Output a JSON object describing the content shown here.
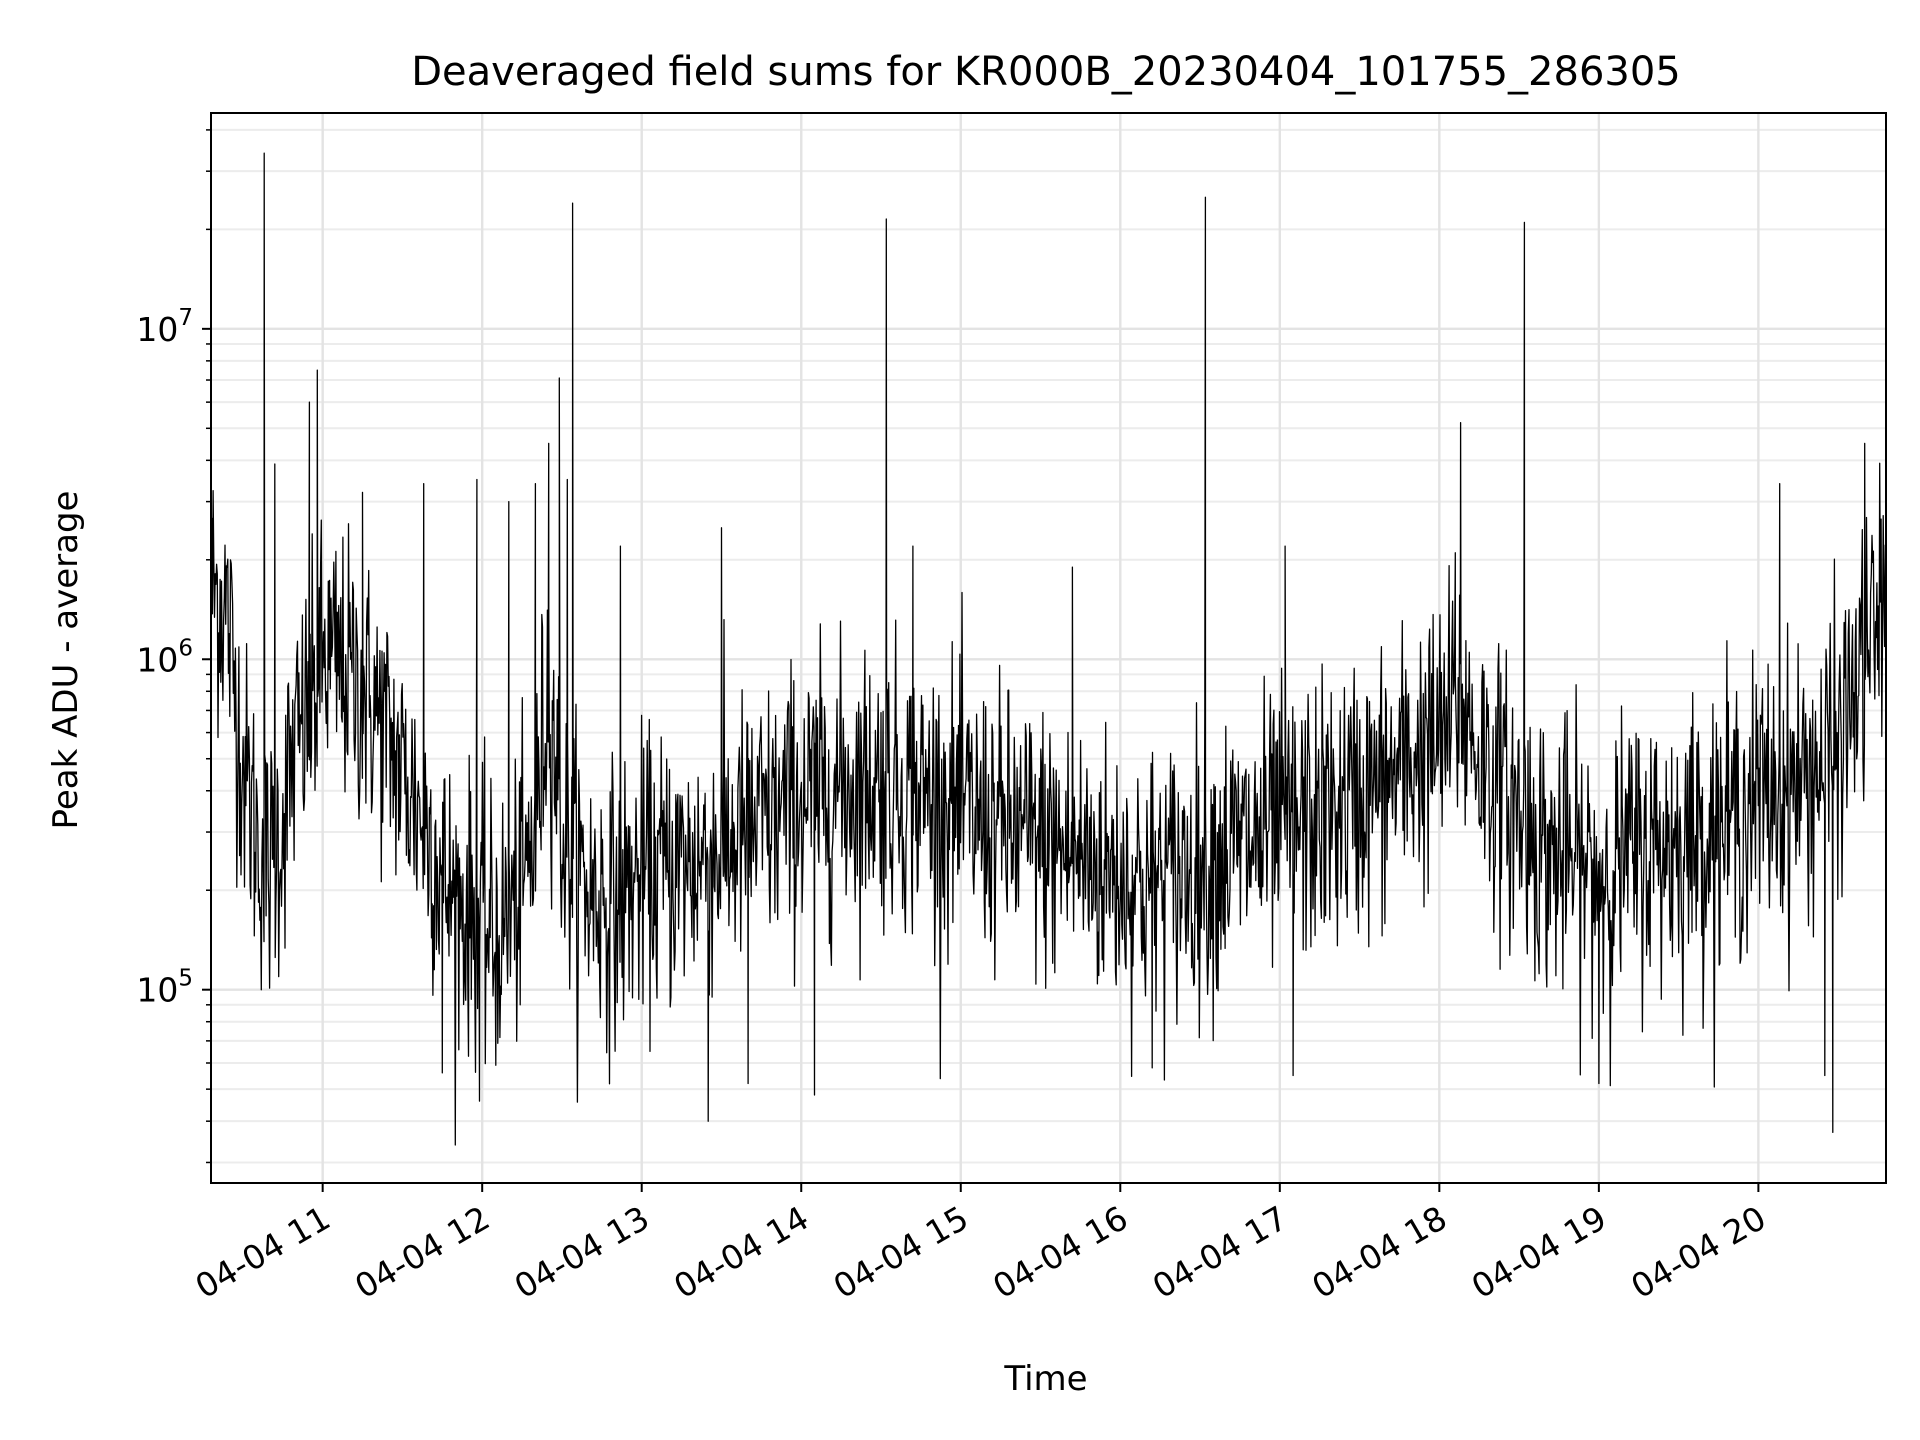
{
  "chart_data": {
    "type": "line",
    "title": "Deaveraged field sums for KR000B_20230404_101755_286305",
    "xlabel": "Time",
    "ylabel": "Peak ADU - average",
    "yscale": "log",
    "ylim": [
      26000,
      45000000
    ],
    "xlim": [
      "2023-04-04T10:18:00",
      "2023-04-04T20:48:00"
    ],
    "grid": true,
    "line_color": "#000000",
    "x_ticks": [
      {
        "value": "2023-04-04T11:00:00",
        "label": "04-04 11"
      },
      {
        "value": "2023-04-04T12:00:00",
        "label": "04-04 12"
      },
      {
        "value": "2023-04-04T13:00:00",
        "label": "04-04 13"
      },
      {
        "value": "2023-04-04T14:00:00",
        "label": "04-04 14"
      },
      {
        "value": "2023-04-04T15:00:00",
        "label": "04-04 15"
      },
      {
        "value": "2023-04-04T16:00:00",
        "label": "04-04 16"
      },
      {
        "value": "2023-04-04T17:00:00",
        "label": "04-04 17"
      },
      {
        "value": "2023-04-04T18:00:00",
        "label": "04-04 18"
      },
      {
        "value": "2023-04-04T19:00:00",
        "label": "04-04 19"
      },
      {
        "value": "2023-04-04T20:00:00",
        "label": "04-04 20"
      }
    ],
    "y_ticks": [
      {
        "value": 100000,
        "base": "10",
        "exp": "5"
      },
      {
        "value": 1000000,
        "base": "10",
        "exp": "6"
      },
      {
        "value": 10000000,
        "base": "10",
        "exp": "7"
      }
    ],
    "series": [
      {
        "x": [
          "2023-04-04T10:18:00",
          "2023-04-04T10:24:00",
          "2023-04-04T10:30:00",
          "2023-04-04T10:36:00",
          "2023-04-04T10:40:00",
          "2023-04-04T10:44:00",
          "2023-04-04T10:50:00",
          "2023-04-04T10:57:00",
          "2023-04-04T11:00:00",
          "2023-04-04T11:10:00",
          "2023-04-04T11:20:00",
          "2023-04-04T11:30:00",
          "2023-04-04T11:40:00",
          "2023-04-04T11:45:00",
          "2023-04-04T11:50:00",
          "2023-04-04T11:58:00",
          "2023-04-04T12:05:00",
          "2023-04-04T12:15:00",
          "2023-04-04T12:20:00",
          "2023-04-04T12:25:00",
          "2023-04-04T12:30:00",
          "2023-04-04T12:34:00",
          "2023-04-04T12:40:00",
          "2023-04-04T12:50:00",
          "2023-04-04T13:00:00",
          "2023-04-04T13:10:00",
          "2023-04-04T13:20:00",
          "2023-04-04T13:26:00",
          "2023-04-04T13:30:00",
          "2023-04-04T13:40:00",
          "2023-04-04T13:50:00",
          "2023-04-04T14:00:00",
          "2023-04-04T14:10:00",
          "2023-04-04T14:20:00",
          "2023-04-04T14:32:00",
          "2023-04-04T14:40:00",
          "2023-04-04T14:50:00",
          "2023-04-04T15:00:00",
          "2023-04-04T15:10:00",
          "2023-04-04T15:20:00",
          "2023-04-04T15:30:00",
          "2023-04-04T15:40:00",
          "2023-04-04T15:50:00",
          "2023-04-04T16:00:00",
          "2023-04-04T16:10:00",
          "2023-04-04T16:20:00",
          "2023-04-04T16:32:00",
          "2023-04-04T16:40:00",
          "2023-04-04T16:50:00",
          "2023-04-04T17:00:00",
          "2023-04-04T17:10:00",
          "2023-04-04T17:20:00",
          "2023-04-04T17:30:00",
          "2023-04-04T17:40:00",
          "2023-04-04T17:50:00",
          "2023-04-04T18:00:00",
          "2023-04-04T18:08:00",
          "2023-04-04T18:15:00",
          "2023-04-04T18:25:00",
          "2023-04-04T18:32:00",
          "2023-04-04T18:40:00",
          "2023-04-04T18:50:00",
          "2023-04-04T19:00:00",
          "2023-04-04T19:10:00",
          "2023-04-04T19:20:00",
          "2023-04-04T19:30:00",
          "2023-04-04T19:40:00",
          "2023-04-04T19:50:00",
          "2023-04-04T20:00:00",
          "2023-04-04T20:10:00",
          "2023-04-04T20:20:00",
          "2023-04-04T20:30:00",
          "2023-04-04T20:40:00",
          "2023-04-04T20:48:00"
        ],
        "y": [
          1700000,
          1400000,
          480000,
          270000,
          230000,
          300000,
          550000,
          750000,
          1000000,
          900000,
          700000,
          450000,
          300000,
          220000,
          180000,
          170000,
          140000,
          200000,
          300000,
          900000,
          300000,
          250000,
          200000,
          180000,
          220000,
          230000,
          240000,
          260000,
          270000,
          300000,
          330000,
          380000,
          400000,
          420000,
          430000,
          400000,
          380000,
          350000,
          320000,
          300000,
          280000,
          260000,
          240000,
          220000,
          210000,
          220000,
          240000,
          260000,
          280000,
          300000,
          320000,
          340000,
          380000,
          420000,
          500000,
          560000,
          750000,
          520000,
          380000,
          330000,
          260000,
          240000,
          220000,
          250000,
          270000,
          280000,
          300000,
          330000,
          380000,
          400000,
          450000,
          550000,
          1000000,
          1500000
        ],
        "noise": 0.38,
        "spikes": [
          {
            "x": "2023-04-04T10:38:00",
            "y": 34000000
          },
          {
            "x": "2023-04-04T10:42:00",
            "y": 3900000
          },
          {
            "x": "2023-04-04T10:55:00",
            "y": 6000000
          },
          {
            "x": "2023-04-04T10:58:00",
            "y": 7500000
          },
          {
            "x": "2023-04-04T11:15:00",
            "y": 3200000
          },
          {
            "x": "2023-04-04T11:38:00",
            "y": 3400000
          },
          {
            "x": "2023-04-04T11:58:00",
            "y": 3500000
          },
          {
            "x": "2023-04-04T12:10:00",
            "y": 3000000
          },
          {
            "x": "2023-04-04T12:20:00",
            "y": 3400000
          },
          {
            "x": "2023-04-04T12:25:00",
            "y": 4500000
          },
          {
            "x": "2023-04-04T12:29:00",
            "y": 7100000
          },
          {
            "x": "2023-04-04T12:32:00",
            "y": 3500000
          },
          {
            "x": "2023-04-04T12:34:00",
            "y": 24000000
          },
          {
            "x": "2023-04-04T12:52:00",
            "y": 2200000
          },
          {
            "x": "2023-04-04T13:30:00",
            "y": 2500000
          },
          {
            "x": "2023-04-04T14:32:00",
            "y": 21500000
          },
          {
            "x": "2023-04-04T14:42:00",
            "y": 2200000
          },
          {
            "x": "2023-04-04T15:42:00",
            "y": 1900000
          },
          {
            "x": "2023-04-04T16:32:00",
            "y": 25000000
          },
          {
            "x": "2023-04-04T17:02:00",
            "y": 2200000
          },
          {
            "x": "2023-04-04T18:06:00",
            "y": 2100000
          },
          {
            "x": "2023-04-04T18:08:00",
            "y": 5200000
          },
          {
            "x": "2023-04-04T18:32:00",
            "y": 21000000
          },
          {
            "x": "2023-04-04T20:08:00",
            "y": 3400000
          },
          {
            "x": "2023-04-04T20:40:00",
            "y": 4500000
          }
        ],
        "dips": [
          {
            "x": "2023-04-04T11:45:00",
            "y": 56000
          },
          {
            "x": "2023-04-04T11:59:00",
            "y": 46000
          },
          {
            "x": "2023-04-04T13:25:00",
            "y": 40000
          },
          {
            "x": "2023-04-04T13:40:00",
            "y": 52000
          },
          {
            "x": "2023-04-04T14:05:00",
            "y": 48000
          },
          {
            "x": "2023-04-04T16:12:00",
            "y": 58000
          },
          {
            "x": "2023-04-04T17:05:00",
            "y": 55000
          },
          {
            "x": "2023-04-04T19:00:00",
            "y": 52000
          },
          {
            "x": "2023-04-04T20:25:00",
            "y": 55000
          },
          {
            "x": "2023-04-04T20:28:00",
            "y": 37000
          }
        ]
      }
    ]
  }
}
